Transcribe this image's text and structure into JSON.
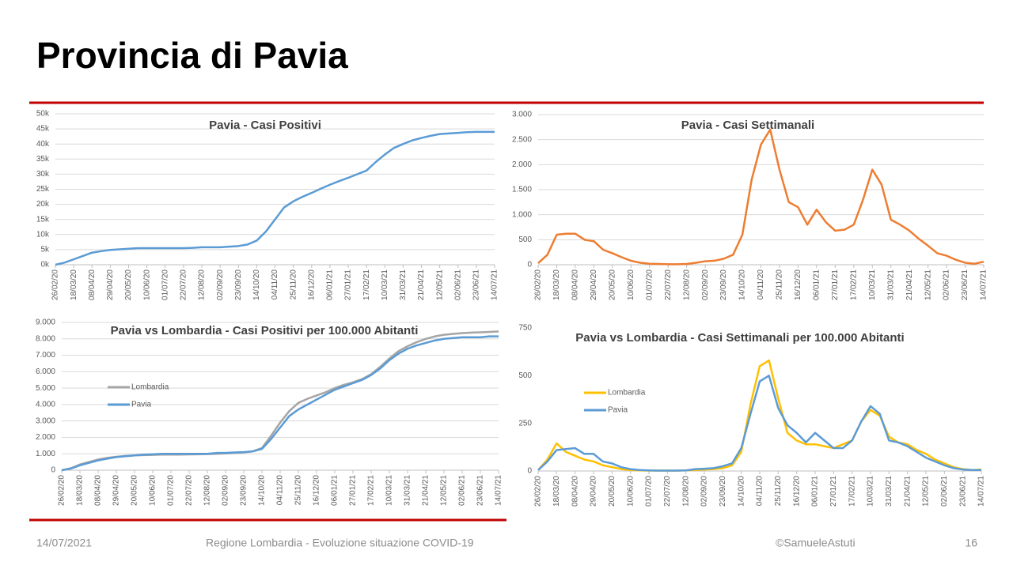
{
  "slide": {
    "title": "Provincia di Pavia",
    "date": "14/07/2021",
    "footer": "Regione Lombardia - Evoluzione situazione COVID-19",
    "credit": "©SamueleAstuti",
    "page": "16"
  },
  "chart_data": [
    {
      "type": "line",
      "title": "Pavia - Casi Positivi",
      "categories": [
        "26/02/20",
        null,
        "18/03/20",
        null,
        "08/04/20",
        null,
        "29/04/20",
        null,
        "20/05/20",
        null,
        "10/06/20",
        null,
        "01/07/20",
        null,
        "22/07/20",
        null,
        "12/08/20",
        null,
        "02/09/20",
        null,
        "23/09/20",
        null,
        "14/10/20",
        null,
        "04/11/20",
        null,
        "25/11/20",
        null,
        "16/12/20",
        null,
        "06/01/21",
        null,
        "27/01/21",
        null,
        "17/02/21",
        null,
        "10/03/21",
        null,
        "31/03/21",
        null,
        "21/04/21",
        null,
        "12/05/21",
        null,
        "02/06/21",
        null,
        "23/06/21",
        null,
        "14/07/21"
      ],
      "series": [
        {
          "name": "Pavia",
          "color": "#5b9bd5",
          "values": [
            0,
            700,
            1800,
            2900,
            4000,
            4500,
            4900,
            5100,
            5300,
            5500,
            5500,
            5500,
            5500,
            5500,
            5500,
            5600,
            5800,
            5800,
            5800,
            6000,
            6200,
            6700,
            8000,
            11000,
            15000,
            19000,
            21000,
            22500,
            23800,
            25200,
            26500,
            27700,
            28800,
            30000,
            31200,
            34000,
            36500,
            38700,
            40000,
            41200,
            42000,
            42700,
            43300,
            43500,
            43700,
            43900,
            44000,
            44000,
            44000
          ]
        }
      ],
      "ylim": [
        0,
        50000
      ],
      "yticks": [
        {
          "value": 0,
          "label": "0k"
        },
        {
          "value": 5000,
          "label": "5k"
        },
        {
          "value": 10000,
          "label": "10k"
        },
        {
          "value": 15000,
          "label": "15k"
        },
        {
          "value": 20000,
          "label": "20k"
        },
        {
          "value": 25000,
          "label": "25k"
        },
        {
          "value": 30000,
          "label": "30k"
        },
        {
          "value": 35000,
          "label": "35k"
        },
        {
          "value": 40000,
          "label": "40k"
        },
        {
          "value": 45000,
          "label": "45k"
        },
        {
          "value": 50000,
          "label": "50k"
        }
      ],
      "grid": true
    },
    {
      "type": "line",
      "title": "Pavia - Casi Settimanali",
      "categories": [
        "26/02/20",
        null,
        "18/03/20",
        null,
        "08/04/20",
        null,
        "29/04/20",
        null,
        "20/05/20",
        null,
        "10/06/20",
        null,
        "01/07/20",
        null,
        "22/07/20",
        null,
        "12/08/20",
        null,
        "02/09/20",
        null,
        "23/09/20",
        null,
        "14/10/20",
        null,
        "04/11/20",
        null,
        "25/11/20",
        null,
        "16/12/20",
        null,
        "06/01/21",
        null,
        "27/01/21",
        null,
        "17/02/21",
        null,
        "10/03/21",
        null,
        "31/03/21",
        null,
        "21/04/21",
        null,
        "12/05/21",
        null,
        "02/06/21",
        null,
        "23/06/21",
        null,
        "14/07/21"
      ],
      "series": [
        {
          "name": "Pavia",
          "color": "#ed7d31",
          "values": [
            30,
            200,
            600,
            620,
            620,
            500,
            470,
            300,
            230,
            150,
            80,
            40,
            20,
            15,
            10,
            10,
            15,
            40,
            70,
            80,
            120,
            200,
            600,
            1700,
            2400,
            2700,
            1900,
            1250,
            1150,
            800,
            1100,
            850,
            680,
            700,
            800,
            1300,
            1900,
            1600,
            900,
            800,
            680,
            520,
            380,
            230,
            180,
            100,
            40,
            20,
            60
          ]
        }
      ],
      "ylim": [
        0,
        3000
      ],
      "yticks": [
        0,
        500,
        {
          "value": 1000,
          "label": "1.000"
        },
        {
          "value": 1500,
          "label": "1.500"
        },
        {
          "value": 2000,
          "label": "2.000"
        },
        {
          "value": 2500,
          "label": "2.500"
        },
        {
          "value": 3000,
          "label": "3.000"
        }
      ],
      "grid": true
    },
    {
      "type": "line",
      "title": "Pavia vs Lombardia - Casi Positivi per 100.000 Abitanti",
      "categories": [
        "26/02/20",
        null,
        "18/03/20",
        null,
        "08/04/20",
        null,
        "29/04/20",
        null,
        "20/05/20",
        null,
        "10/06/20",
        null,
        "01/07/20",
        null,
        "22/07/20",
        null,
        "12/08/20",
        null,
        "02/09/20",
        null,
        "23/09/20",
        null,
        "14/10/20",
        null,
        "04/11/20",
        null,
        "25/11/20",
        null,
        "16/12/20",
        null,
        "06/01/21",
        null,
        "27/01/21",
        null,
        "17/02/21",
        null,
        "10/03/21",
        null,
        "31/03/21",
        null,
        "21/04/21",
        null,
        "12/05/21",
        null,
        "02/06/21",
        null,
        "23/06/21",
        null,
        "14/07/21"
      ],
      "series": [
        {
          "name": "Lombardia",
          "color": "#a5a5a5",
          "values": [
            0,
            120,
            350,
            500,
            650,
            750,
            820,
            870,
            900,
            920,
            930,
            950,
            950,
            950,
            960,
            970,
            980,
            1000,
            1020,
            1050,
            1080,
            1150,
            1350,
            2100,
            2900,
            3600,
            4100,
            4350,
            4550,
            4750,
            5000,
            5200,
            5350,
            5550,
            5850,
            6300,
            6800,
            7250,
            7550,
            7800,
            8000,
            8150,
            8250,
            8300,
            8350,
            8380,
            8400,
            8420,
            8450
          ]
        },
        {
          "name": "Pavia",
          "color": "#5b9bd5",
          "values": [
            0,
            100,
            300,
            450,
            600,
            700,
            800,
            850,
            900,
            950,
            970,
            1000,
            1000,
            1000,
            1000,
            1000,
            1000,
            1050,
            1050,
            1080,
            1100,
            1150,
            1300,
            1900,
            2600,
            3300,
            3700,
            4000,
            4300,
            4600,
            4900,
            5100,
            5300,
            5500,
            5800,
            6200,
            6700,
            7100,
            7400,
            7600,
            7750,
            7900,
            8000,
            8050,
            8100,
            8100,
            8100,
            8150,
            8150
          ]
        }
      ],
      "ylim": [
        0,
        9000
      ],
      "yticks": [
        0,
        {
          "value": 1000,
          "label": "1.000"
        },
        {
          "value": 2000,
          "label": "2.000"
        },
        {
          "value": 3000,
          "label": "3.000"
        },
        {
          "value": 4000,
          "label": "4.000"
        },
        {
          "value": 5000,
          "label": "5.000"
        },
        {
          "value": 6000,
          "label": "6.000"
        },
        {
          "value": 7000,
          "label": "7.000"
        },
        {
          "value": 8000,
          "label": "8.000"
        },
        {
          "value": 9000,
          "label": "9.000"
        }
      ],
      "grid": true,
      "legend": "left"
    },
    {
      "type": "line",
      "title": "Pavia vs Lombardia - Casi Settimanali per 100.000 Abitanti",
      "categories": [
        "26/02/20",
        null,
        "18/03/20",
        null,
        "08/04/20",
        null,
        "29/04/20",
        null,
        "20/05/20",
        null,
        "10/06/20",
        null,
        "01/07/20",
        null,
        "22/07/20",
        null,
        "12/08/20",
        null,
        "02/09/20",
        null,
        "23/09/20",
        null,
        "14/10/20",
        null,
        "04/11/20",
        null,
        "25/11/20",
        null,
        "16/12/20",
        null,
        "06/01/21",
        null,
        "27/01/21",
        null,
        "17/02/21",
        null,
        "10/03/21",
        null,
        "31/03/21",
        null,
        "21/04/21",
        null,
        "12/05/21",
        null,
        "02/06/21",
        null,
        "23/06/21",
        null,
        "14/07/21"
      ],
      "series": [
        {
          "name": "Lombardia",
          "color": "#ffc000",
          "values": [
            5,
            60,
            145,
            100,
            80,
            60,
            50,
            30,
            20,
            10,
            5,
            3,
            2,
            2,
            2,
            2,
            3,
            5,
            8,
            10,
            15,
            30,
            100,
            350,
            550,
            580,
            380,
            200,
            160,
            140,
            140,
            130,
            120,
            140,
            160,
            260,
            320,
            290,
            180,
            150,
            140,
            110,
            90,
            60,
            40,
            20,
            10,
            5,
            8
          ]
        },
        {
          "name": "Pavia",
          "color": "#5b9bd5",
          "values": [
            5,
            50,
            110,
            115,
            120,
            90,
            90,
            50,
            40,
            20,
            10,
            5,
            3,
            2,
            2,
            2,
            3,
            10,
            12,
            15,
            25,
            40,
            120,
            300,
            470,
            500,
            330,
            240,
            200,
            150,
            200,
            160,
            120,
            120,
            160,
            260,
            340,
            300,
            160,
            150,
            130,
            100,
            70,
            50,
            30,
            15,
            8,
            5,
            5
          ]
        }
      ],
      "ylim": [
        0,
        750
      ],
      "yticks": [
        0,
        250,
        500,
        750
      ],
      "grid": false,
      "legend": "left"
    }
  ]
}
